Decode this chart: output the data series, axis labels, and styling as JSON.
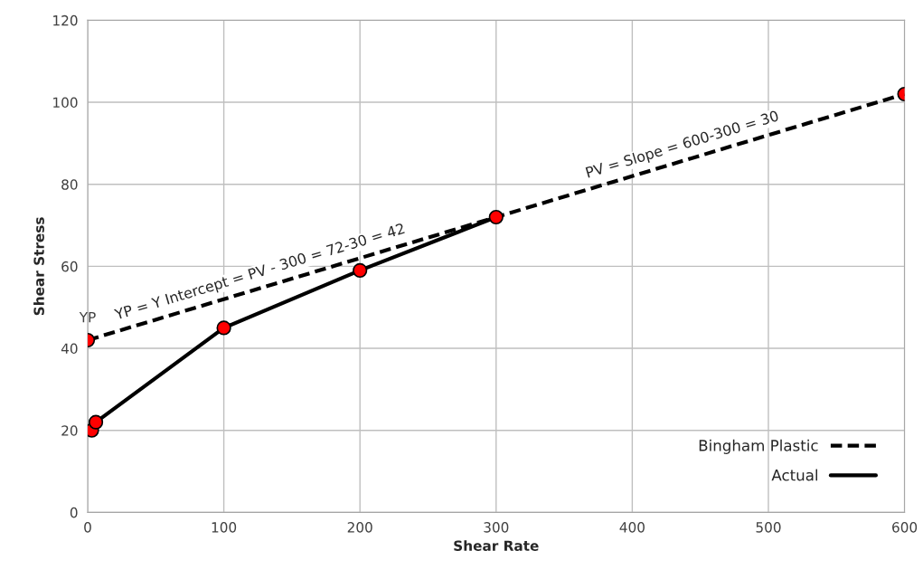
{
  "chart_data": {
    "type": "line",
    "xlabel": "Shear Rate",
    "ylabel": "Shear Stress",
    "xlim": [
      0,
      600
    ],
    "xticks": [
      0,
      100,
      200,
      300,
      400,
      500,
      600
    ],
    "ylim": [
      0,
      120
    ],
    "yticks": [
      0,
      20,
      40,
      60,
      80,
      100,
      120
    ],
    "grid": true,
    "legend": "bottom right",
    "series": [
      {
        "name": "Bingham Plastic",
        "line_style": "dashed",
        "marker": "none",
        "color": "#000000",
        "x": [
          0,
          300,
          600
        ],
        "values": [
          42,
          72,
          102
        ]
      },
      {
        "name": "Actual",
        "line_style": "solid",
        "marker": "circle",
        "color": "#000000",
        "x": [
          3,
          6,
          100,
          200,
          300
        ],
        "values": [
          20,
          22,
          45,
          59,
          72
        ]
      },
      {
        "type": "scatter",
        "marker": "circle",
        "color": "#ff0000",
        "x": [
          0,
          600
        ],
        "values": [
          42,
          102
        ]
      }
    ],
    "annotations": [
      {
        "text": "YP",
        "x": 0,
        "y": 42
      },
      {
        "text": "YP = Y Intercept = PV - 300 = 72-30 = 42",
        "x": 130,
        "y": 55
      },
      {
        "text": "PV = Slope = 600-300 = 30",
        "x": 440,
        "y": 86
      }
    ]
  }
}
